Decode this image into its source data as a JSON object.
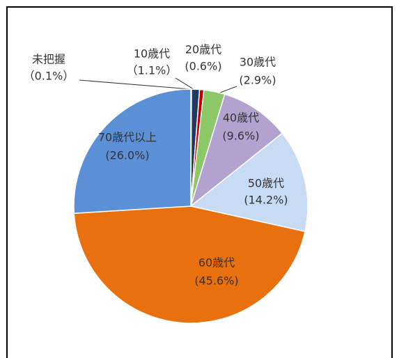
{
  "chart_data": {
    "type": "pie",
    "categories": [
      "未把握",
      "10歳代",
      "20歳代",
      "30歳代",
      "40歳代",
      "50歳代",
      "60歳代",
      "70歳代以上"
    ],
    "values": [
      0.1,
      1.1,
      0.6,
      2.9,
      9.6,
      14.2,
      45.6,
      26.0
    ],
    "value_labels": [
      "（0.1%）",
      "（1.1%）",
      "(0.6%)",
      "(2.9%)",
      "(9.6%)",
      "(14.2%)",
      "(45.6%)",
      "(26.0%)"
    ],
    "colors": [
      "#a9b8cc",
      "#1f3864",
      "#c00000",
      "#8cc868",
      "#b3a2d0",
      "#c8dbf5",
      "#e8700f",
      "#5b8fd6"
    ]
  }
}
